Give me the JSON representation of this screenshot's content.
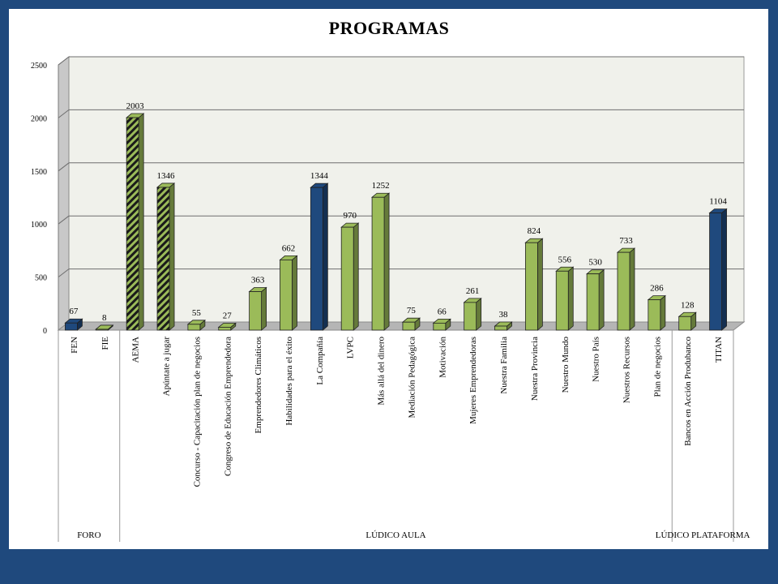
{
  "chart_data": {
    "type": "bar",
    "title": "PROGRAMAS",
    "xlabel": "",
    "ylabel": "",
    "ylim": [
      0,
      2500
    ],
    "yticks": [
      0,
      500,
      1000,
      1500,
      2000,
      2500
    ],
    "grid": true,
    "legend": "none",
    "categories": [
      "FEN",
      "FIE",
      "AEMA",
      "Apúntate a jugar",
      "Concurso - Capacitación plan de negocios",
      "Congreso de Educación Emprendedora",
      "Emprendedores Climáticos",
      "Habilidades para el éxito",
      "La Compañía",
      "LVPC",
      "Más allá del dinero",
      "Mediación Pedagógica",
      "Motivación",
      "Mujeres Emprendedoras",
      "Nuestra Familia",
      "Nuestra Provincia",
      "Nuestro Mundo",
      "Nuestro País",
      "Nuestros Recursos",
      "Plan de negocios",
      "Bancos en Acción Produbanco",
      "TITAN"
    ],
    "values": [
      67,
      8,
      2003,
      1346,
      55,
      27,
      363,
      662,
      1344,
      970,
      1252,
      75,
      66,
      261,
      38,
      824,
      556,
      530,
      733,
      286,
      128,
      1104
    ],
    "styles": [
      "blue",
      "green",
      "hatched",
      "hatched",
      "green",
      "green",
      "green",
      "green",
      "blue",
      "green",
      "green",
      "green",
      "green",
      "green",
      "green",
      "green",
      "green",
      "green",
      "green",
      "green",
      "green",
      "blue"
    ],
    "groups": [
      {
        "label": "FORO",
        "start": 0,
        "end": 1
      },
      {
        "label": "LÚDICO AULA",
        "start": 2,
        "end": 19
      },
      {
        "label": "LÚDICO PLATAFORMA",
        "start": 20,
        "end": 21
      }
    ],
    "colors": {
      "blue": "#1f497d",
      "green": "#9bbb59",
      "hatch_dark": "#1a1a1a",
      "plot_bg": "#f0f1eb",
      "grid": "#6e6e6e"
    }
  }
}
